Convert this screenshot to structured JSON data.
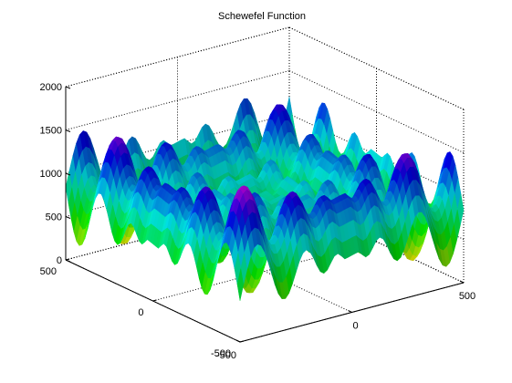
{
  "chart_data": {
    "type": "surface",
    "title": "Schewefel Function",
    "xlabel": "",
    "ylabel": "",
    "zlabel": "",
    "function": "f(x,y) = 837.9658 - x*sin(sqrt(|x|)) - y*sin(sqrt(|y|))",
    "xlim": [
      -500,
      500
    ],
    "ylim": [
      -500,
      500
    ],
    "zlim": [
      0,
      2000
    ],
    "x_ticks": [
      -500,
      0,
      500
    ],
    "y_ticks": [
      -500,
      0,
      500
    ],
    "z_ticks": [
      0,
      500,
      1000,
      1500,
      2000
    ],
    "x_tick_labels": [
      "-500",
      "0",
      "500"
    ],
    "y_tick_labels": [
      "-500",
      "0",
      "500"
    ],
    "z_tick_labels": [
      "0",
      "500",
      "1000",
      "1500",
      "2000"
    ],
    "colormap": "hsv",
    "grid": true,
    "box": true,
    "colors": {
      "axis": "#000000",
      "grid": "#000000",
      "background": "#ffffff"
    }
  }
}
